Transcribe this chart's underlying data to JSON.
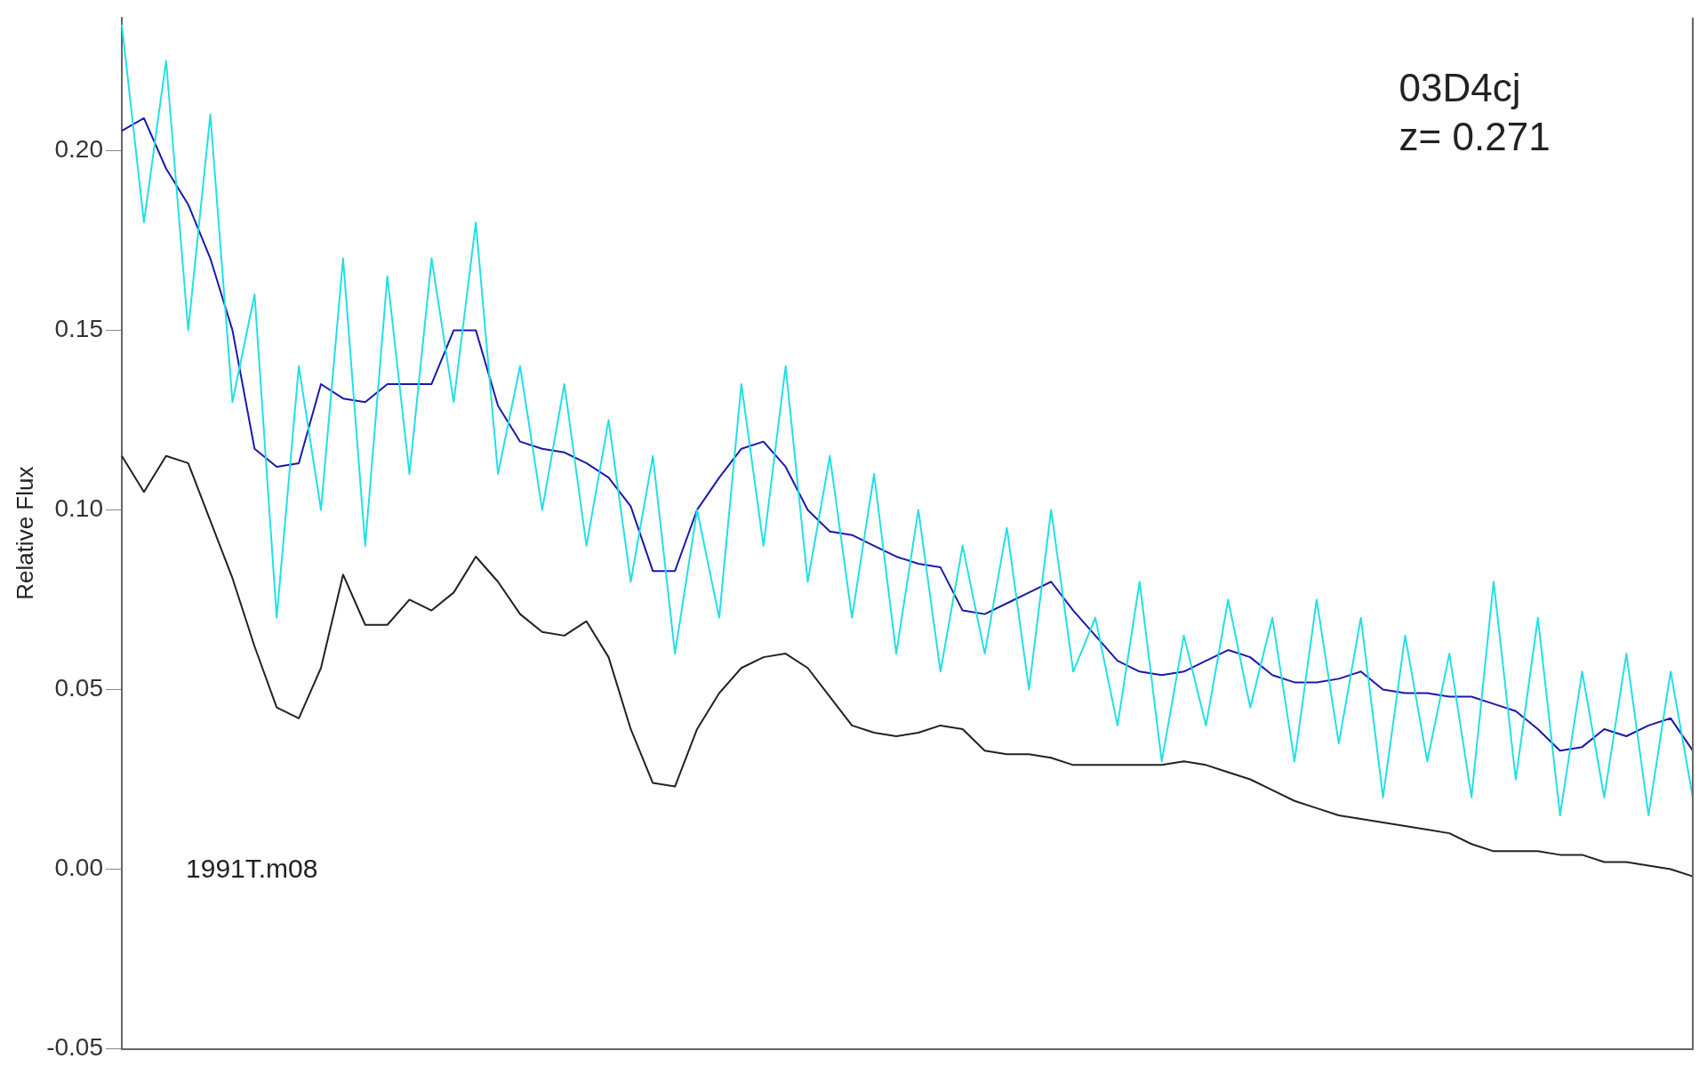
{
  "chart_data": {
    "type": "line",
    "ylabel": "Relative Flux",
    "categories": [
      null,
      null,
      null,
      null,
      null,
      null,
      null,
      null,
      null,
      null,
      null,
      null,
      null,
      null,
      null,
      null,
      null,
      null,
      null,
      null,
      null,
      null,
      null,
      null,
      null,
      null,
      null,
      null,
      null,
      null,
      null,
      null,
      null,
      null,
      null,
      null,
      null,
      null,
      null,
      null,
      null,
      null,
      null,
      null,
      null,
      null,
      null,
      null,
      null,
      null,
      null,
      null,
      null,
      null,
      null,
      null,
      null,
      null,
      null,
      null,
      null,
      null,
      null,
      null,
      null,
      null,
      null,
      null,
      null,
      null,
      null,
      null
    ],
    "ylim": [
      -0.05,
      0.237
    ],
    "yticks": [
      {
        "value": -0.05,
        "label": "-0.05"
      },
      {
        "value": 0,
        "label": "0.00"
      },
      {
        "value": 0.05,
        "label": "0.05"
      },
      {
        "value": 0.1,
        "label": "0.10"
      },
      {
        "value": 0.15,
        "label": "0.15"
      },
      {
        "value": 0.2,
        "label": "0.20"
      }
    ],
    "grid": false,
    "legend": false,
    "marker": "none",
    "line_style": "solid",
    "annotations": [
      "03D4cj",
      "z= 0.271",
      "1991T.m08"
    ],
    "series": [
      {
        "color": "#22e0e6",
        "values": [
          0.235,
          0.18,
          0.225,
          0.15,
          0.21,
          0.13,
          0.16,
          0.07,
          0.14,
          0.1,
          0.17,
          0.09,
          0.165,
          0.11,
          0.17,
          0.13,
          0.18,
          0.11,
          0.14,
          0.1,
          0.135,
          0.09,
          0.125,
          0.08,
          0.115,
          0.06,
          0.1,
          0.07,
          0.135,
          0.09,
          0.14,
          0.08,
          0.115,
          0.07,
          0.11,
          0.06,
          0.1,
          0.055,
          0.09,
          0.06,
          0.095,
          0.05,
          0.1,
          0.055,
          0.07,
          0.04,
          0.08,
          0.03,
          0.065,
          0.04,
          0.075,
          0.045,
          0.07,
          0.03,
          0.075,
          0.035,
          0.07,
          0.02,
          0.065,
          0.03,
          0.06,
          0.02,
          0.08,
          0.025,
          0.07,
          0.015,
          0.055,
          0.02,
          0.06,
          0.015,
          0.055,
          0.02
        ]
      },
      {
        "color": "#1a1aaa",
        "values": [
          0.2055,
          0.209,
          0.195,
          0.185,
          0.17,
          0.15,
          0.117,
          0.112,
          0.113,
          0.135,
          0.131,
          0.13,
          0.135,
          0.135,
          0.135,
          0.15,
          0.15,
          0.129,
          0.119,
          0.117,
          0.116,
          0.113,
          0.109,
          0.101,
          0.083,
          0.083,
          0.1,
          0.109,
          0.117,
          0.119,
          0.112,
          0.1,
          0.094,
          0.093,
          0.09,
          0.087,
          0.085,
          0.084,
          0.072,
          0.071,
          0.074,
          0.077,
          0.08,
          0.072,
          0.065,
          0.058,
          0.055,
          0.054,
          0.055,
          0.058,
          0.061,
          0.059,
          0.054,
          0.052,
          0.052,
          0.053,
          0.055,
          0.05,
          0.049,
          0.049,
          0.048,
          0.048,
          0.046,
          0.044,
          0.039,
          0.033,
          0.034,
          0.039,
          0.037,
          0.04,
          0.042,
          0.033
        ]
      },
      {
        "color": "#222222",
        "values": [
          0.115,
          0.105,
          0.115,
          0.113,
          0.097,
          0.081,
          0.062,
          0.045,
          0.042,
          0.056,
          0.082,
          0.068,
          0.068,
          0.075,
          0.072,
          0.077,
          0.087,
          0.08,
          0.071,
          0.066,
          0.065,
          0.069,
          0.059,
          0.039,
          0.024,
          0.023,
          0.039,
          0.049,
          0.056,
          0.059,
          0.06,
          0.056,
          0.048,
          0.04,
          0.038,
          0.037,
          0.038,
          0.04,
          0.039,
          0.033,
          0.032,
          0.032,
          0.031,
          0.029,
          0.029,
          0.029,
          0.029,
          0.029,
          0.03,
          0.029,
          0.027,
          0.025,
          0.022,
          0.019,
          0.017,
          0.015,
          0.014,
          0.013,
          0.012,
          0.011,
          0.01,
          0.007,
          0.005,
          0.005,
          0.005,
          0.004,
          0.004,
          0.002,
          0.002,
          0.001,
          0.0,
          -0.002
        ]
      }
    ]
  }
}
